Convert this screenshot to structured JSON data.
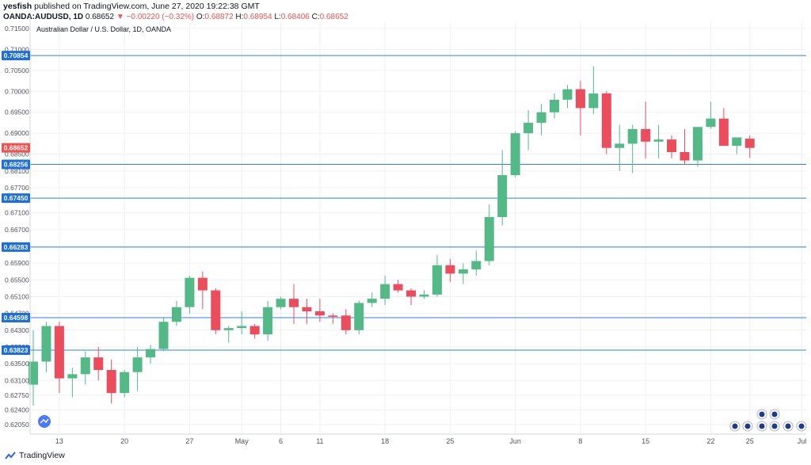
{
  "header": {
    "author": "yesfish",
    "published": "published on TradingView.com, June 27, 2020 19:22:38 GMT",
    "symbol": "OANDA:AUDUSD, 1D",
    "last": "0.68652",
    "change": "▼ −0.00220 (−0.32%)",
    "o_label": "O:",
    "o": "0.68872",
    "h_label": "H:",
    "h": "0.68954",
    "l_label": "L:",
    "l": "0.68406",
    "c_label": "C:",
    "c": "0.68652"
  },
  "footer": {
    "brand": "TradingView"
  },
  "colors": {
    "up": "#26a69a",
    "up_fill": "#53b987",
    "down": "#ef5350",
    "down_fill": "#eb4d5c",
    "level_line": "#2f80ed",
    "level_label_bg": "#1e6fd9",
    "price_label_bg": "#ef5350",
    "grid": "#edf0f5"
  },
  "chart_data": {
    "type": "candlestick",
    "title": "Australian Dollar / U.S. Dollar, 1D, OANDA",
    "ylim": [
      0.6182,
      0.7165
    ],
    "y_ticks": [
      "0.71500",
      "0.71000",
      "0.70500",
      "0.70000",
      "0.69500",
      "0.69000",
      "0.68500",
      "0.68100",
      "0.67700",
      "0.67100",
      "0.66700",
      "0.66300",
      "0.65900",
      "0.65500",
      "0.65100",
      "0.64700",
      "0.64300",
      "0.63900",
      "0.63500",
      "0.63100",
      "0.62750",
      "0.62400",
      "0.62050"
    ],
    "x_labels": [
      "13",
      "20",
      "27",
      "May",
      "6",
      "11",
      "18",
      "25",
      "Jun",
      "8",
      "15",
      "22",
      "25",
      "Jul"
    ],
    "x_label_dates": [
      "2020-04-13",
      "2020-04-20",
      "2020-04-27",
      "2020-05-01",
      "2020-05-06",
      "2020-05-11",
      "2020-05-18",
      "2020-05-25",
      "2020-06-01",
      "2020-06-08",
      "2020-06-15",
      "2020-06-22",
      "2020-06-25",
      "2020-07-01"
    ],
    "levels": [
      0.70854,
      0.68256,
      0.6745,
      0.66283,
      0.64598,
      0.63823
    ],
    "level_labels": [
      "0.70854",
      "0.68256",
      "0.67450",
      "0.66283",
      "0.64598",
      "0.63823"
    ],
    "last_price": 0.68652,
    "last_price_label": "0.68652",
    "candles": [
      {
        "d": "2020-04-09",
        "o": 0.63,
        "h": 0.643,
        "l": 0.625,
        "c": 0.6355
      },
      {
        "d": "2020-04-10",
        "o": 0.6355,
        "h": 0.645,
        "l": 0.633,
        "c": 0.644
      },
      {
        "d": "2020-04-13",
        "o": 0.644,
        "h": 0.645,
        "l": 0.628,
        "c": 0.6315
      },
      {
        "d": "2020-04-14",
        "o": 0.6315,
        "h": 0.634,
        "l": 0.627,
        "c": 0.6325
      },
      {
        "d": "2020-04-15",
        "o": 0.6325,
        "h": 0.638,
        "l": 0.63,
        "c": 0.6365
      },
      {
        "d": "2020-04-16",
        "o": 0.6365,
        "h": 0.639,
        "l": 0.631,
        "c": 0.6335
      },
      {
        "d": "2020-04-17",
        "o": 0.6335,
        "h": 0.636,
        "l": 0.6255,
        "c": 0.628
      },
      {
        "d": "2020-04-20",
        "o": 0.628,
        "h": 0.6335,
        "l": 0.627,
        "c": 0.633
      },
      {
        "d": "2020-04-21",
        "o": 0.633,
        "h": 0.639,
        "l": 0.6285,
        "c": 0.6365
      },
      {
        "d": "2020-04-22",
        "o": 0.6365,
        "h": 0.6395,
        "l": 0.635,
        "c": 0.6385
      },
      {
        "d": "2020-04-23",
        "o": 0.6385,
        "h": 0.646,
        "l": 0.638,
        "c": 0.645
      },
      {
        "d": "2020-04-24",
        "o": 0.645,
        "h": 0.65,
        "l": 0.644,
        "c": 0.6485
      },
      {
        "d": "2020-04-27",
        "o": 0.6485,
        "h": 0.656,
        "l": 0.647,
        "c": 0.6555
      },
      {
        "d": "2020-04-28",
        "o": 0.6555,
        "h": 0.657,
        "l": 0.648,
        "c": 0.6525
      },
      {
        "d": "2020-04-29",
        "o": 0.6525,
        "h": 0.653,
        "l": 0.642,
        "c": 0.643
      },
      {
        "d": "2020-04-30",
        "o": 0.643,
        "h": 0.644,
        "l": 0.64,
        "c": 0.6435
      },
      {
        "d": "2020-05-01",
        "o": 0.6435,
        "h": 0.6475,
        "l": 0.642,
        "c": 0.644
      },
      {
        "d": "2020-05-04",
        "o": 0.644,
        "h": 0.6445,
        "l": 0.641,
        "c": 0.642
      },
      {
        "d": "2020-05-05",
        "o": 0.642,
        "h": 0.65,
        "l": 0.6405,
        "c": 0.6485
      },
      {
        "d": "2020-05-06",
        "o": 0.6485,
        "h": 0.651,
        "l": 0.648,
        "c": 0.6505
      },
      {
        "d": "2020-05-07",
        "o": 0.6505,
        "h": 0.654,
        "l": 0.6445,
        "c": 0.6485
      },
      {
        "d": "2020-05-08",
        "o": 0.6485,
        "h": 0.6505,
        "l": 0.6445,
        "c": 0.6475
      },
      {
        "d": "2020-05-11",
        "o": 0.6475,
        "h": 0.6505,
        "l": 0.645,
        "c": 0.6465
      },
      {
        "d": "2020-05-12",
        "o": 0.6465,
        "h": 0.647,
        "l": 0.6445,
        "c": 0.6462
      },
      {
        "d": "2020-05-13",
        "o": 0.6465,
        "h": 0.648,
        "l": 0.642,
        "c": 0.643
      },
      {
        "d": "2020-05-14",
        "o": 0.643,
        "h": 0.65,
        "l": 0.642,
        "c": 0.6495
      },
      {
        "d": "2020-05-15",
        "o": 0.6495,
        "h": 0.652,
        "l": 0.6485,
        "c": 0.6505
      },
      {
        "d": "2020-05-18",
        "o": 0.6505,
        "h": 0.656,
        "l": 0.649,
        "c": 0.654
      },
      {
        "d": "2020-05-19",
        "o": 0.654,
        "h": 0.655,
        "l": 0.652,
        "c": 0.6525
      },
      {
        "d": "2020-05-20",
        "o": 0.6525,
        "h": 0.653,
        "l": 0.649,
        "c": 0.651
      },
      {
        "d": "2020-05-21",
        "o": 0.651,
        "h": 0.6525,
        "l": 0.6505,
        "c": 0.6515
      },
      {
        "d": "2020-05-22",
        "o": 0.6515,
        "h": 0.661,
        "l": 0.651,
        "c": 0.6585
      },
      {
        "d": "2020-05-25",
        "o": 0.6585,
        "h": 0.66,
        "l": 0.6545,
        "c": 0.6565
      },
      {
        "d": "2020-05-26",
        "o": 0.6565,
        "h": 0.659,
        "l": 0.654,
        "c": 0.6575
      },
      {
        "d": "2020-05-27",
        "o": 0.6575,
        "h": 0.662,
        "l": 0.656,
        "c": 0.6595
      },
      {
        "d": "2020-05-28",
        "o": 0.6595,
        "h": 0.673,
        "l": 0.6585,
        "c": 0.67
      },
      {
        "d": "2020-05-29",
        "o": 0.67,
        "h": 0.686,
        "l": 0.668,
        "c": 0.68
      },
      {
        "d": "2020-06-01",
        "o": 0.68,
        "h": 0.6905,
        "l": 0.6795,
        "c": 0.69
      },
      {
        "d": "2020-06-02",
        "o": 0.69,
        "h": 0.6955,
        "l": 0.686,
        "c": 0.6925
      },
      {
        "d": "2020-06-03",
        "o": 0.6925,
        "h": 0.697,
        "l": 0.6895,
        "c": 0.695
      },
      {
        "d": "2020-06-04",
        "o": 0.695,
        "h": 0.6995,
        "l": 0.6935,
        "c": 0.698
      },
      {
        "d": "2020-06-05",
        "o": 0.698,
        "h": 0.7015,
        "l": 0.696,
        "c": 0.7005
      },
      {
        "d": "2020-06-08",
        "o": 0.7005,
        "h": 0.7025,
        "l": 0.6895,
        "c": 0.696
      },
      {
        "d": "2020-06-09",
        "o": 0.696,
        "h": 0.706,
        "l": 0.6945,
        "c": 0.6995
      },
      {
        "d": "2020-06-10",
        "o": 0.6995,
        "h": 0.7,
        "l": 0.685,
        "c": 0.6865
      },
      {
        "d": "2020-06-11",
        "o": 0.6865,
        "h": 0.692,
        "l": 0.681,
        "c": 0.6875
      },
      {
        "d": "2020-06-12",
        "o": 0.6875,
        "h": 0.692,
        "l": 0.6805,
        "c": 0.691
      },
      {
        "d": "2020-06-15",
        "o": 0.691,
        "h": 0.6975,
        "l": 0.684,
        "c": 0.688
      },
      {
        "d": "2020-06-16",
        "o": 0.688,
        "h": 0.692,
        "l": 0.684,
        "c": 0.6885
      },
      {
        "d": "2020-06-17",
        "o": 0.6885,
        "h": 0.6895,
        "l": 0.684,
        "c": 0.6855
      },
      {
        "d": "2020-06-18",
        "o": 0.6855,
        "h": 0.691,
        "l": 0.6825,
        "c": 0.6835
      },
      {
        "d": "2020-06-19",
        "o": 0.6835,
        "h": 0.691,
        "l": 0.682,
        "c": 0.6915
      },
      {
        "d": "2020-06-22",
        "o": 0.6915,
        "h": 0.6975,
        "l": 0.691,
        "c": 0.6935
      },
      {
        "d": "2020-06-23",
        "o": 0.6935,
        "h": 0.696,
        "l": 0.687,
        "c": 0.687
      },
      {
        "d": "2020-06-24",
        "o": 0.687,
        "h": 0.689,
        "l": 0.685,
        "c": 0.689
      },
      {
        "d": "2020-06-25",
        "o": 0.6887,
        "h": 0.6895,
        "l": 0.6841,
        "c": 0.6865
      }
    ]
  }
}
